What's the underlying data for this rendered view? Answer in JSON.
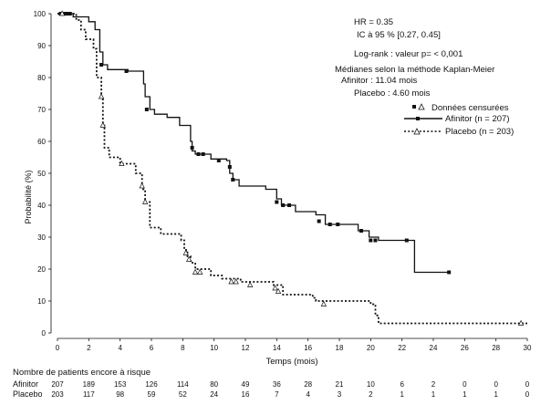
{
  "chart_data": {
    "type": "line",
    "ylabel": "Probabilité (%)",
    "xlabel": "Temps (mois)",
    "xlim": [
      0,
      30
    ],
    "ylim": [
      0,
      100
    ],
    "xticks": [
      "0",
      "2",
      "4",
      "6",
      "8",
      "10",
      "12",
      "14",
      "16",
      "18",
      "20",
      "22",
      "24",
      "26",
      "28",
      "30"
    ],
    "yticks": [
      "0",
      "10",
      "20",
      "30",
      "40",
      "50",
      "60",
      "70",
      "80",
      "90",
      "100"
    ],
    "annotations": {
      "hr": "HR = 0.35",
      "ic": "IC à 95 % [0.27, 0.45]",
      "logrank": "Log-rank : valeur p= < 0,001",
      "medianes": "Médianes selon la méthode Kaplan-Meier",
      "afinitor_median": "Afinitor : 11.04 mois",
      "placebo_median": "Placebo : 4.60 mois"
    },
    "legend": {
      "censored": "Données censurées",
      "afinitor": "Afinitor (n = 207)",
      "placebo": "Placebo (n = 203)",
      "position": "right"
    },
    "series": [
      {
        "name": "Afinitor (n = 207)",
        "style": "solid",
        "points": [
          [
            0,
            100
          ],
          [
            1,
            99
          ],
          [
            2,
            97.5
          ],
          [
            2.4,
            95
          ],
          [
            2.7,
            88
          ],
          [
            2.9,
            84
          ],
          [
            3.2,
            82.5
          ],
          [
            4.5,
            82
          ],
          [
            5.5,
            78
          ],
          [
            5.6,
            74
          ],
          [
            5.9,
            70
          ],
          [
            6.2,
            68.5
          ],
          [
            7,
            67.5
          ],
          [
            7.8,
            65
          ],
          [
            8.5,
            60
          ],
          [
            8.6,
            57
          ],
          [
            8.8,
            56
          ],
          [
            9.8,
            54.5
          ],
          [
            10.8,
            54
          ],
          [
            11,
            50
          ],
          [
            11.2,
            48
          ],
          [
            11.6,
            46
          ],
          [
            13.3,
            45
          ],
          [
            14,
            42
          ],
          [
            14.3,
            40
          ],
          [
            15.2,
            38
          ],
          [
            16.5,
            37
          ],
          [
            17.1,
            34
          ],
          [
            19.2,
            32
          ],
          [
            19.9,
            30
          ],
          [
            20.5,
            29
          ],
          [
            22.8,
            19
          ],
          [
            25,
            19
          ]
        ]
      },
      {
        "name": "Placebo (n = 203)",
        "style": "dotted",
        "points": [
          [
            0,
            100
          ],
          [
            1.2,
            98
          ],
          [
            1.5,
            95
          ],
          [
            1.8,
            92
          ],
          [
            2.3,
            89
          ],
          [
            2.5,
            80
          ],
          [
            2.8,
            74
          ],
          [
            2.9,
            65
          ],
          [
            3,
            58
          ],
          [
            3.3,
            55
          ],
          [
            4,
            53
          ],
          [
            5,
            50
          ],
          [
            5.4,
            45
          ],
          [
            5.6,
            41
          ],
          [
            5.9,
            33
          ],
          [
            6.6,
            31
          ],
          [
            7.9,
            29
          ],
          [
            8.1,
            26
          ],
          [
            8.3,
            24
          ],
          [
            8.5,
            22
          ],
          [
            8.8,
            20
          ],
          [
            9.8,
            18
          ],
          [
            10.5,
            17
          ],
          [
            11.7,
            16
          ],
          [
            13.8,
            15
          ],
          [
            14.4,
            12
          ],
          [
            16.3,
            11
          ],
          [
            16.5,
            10
          ],
          [
            20,
            9
          ],
          [
            20.3,
            5.5
          ],
          [
            20.5,
            3
          ],
          [
            30,
            3
          ]
        ]
      }
    ],
    "censored": {
      "afinitor": [
        [
          0.2,
          100
        ],
        [
          0.4,
          100
        ],
        [
          0.6,
          100
        ],
        [
          0.8,
          100
        ],
        [
          2.8,
          84
        ],
        [
          4.4,
          82
        ],
        [
          5.7,
          70
        ],
        [
          8.6,
          58
        ],
        [
          9,
          56
        ],
        [
          9.3,
          56
        ],
        [
          10.3,
          54
        ],
        [
          11,
          52
        ],
        [
          11.2,
          48
        ],
        [
          14,
          41
        ],
        [
          14.4,
          40
        ],
        [
          14.8,
          40
        ],
        [
          16.7,
          35
        ],
        [
          17.4,
          34
        ],
        [
          17.9,
          34
        ],
        [
          19.4,
          32
        ],
        [
          20,
          29
        ],
        [
          20.3,
          29
        ],
        [
          22.3,
          29
        ],
        [
          25,
          19
        ]
      ],
      "placebo": [
        [
          0.3,
          100
        ],
        [
          2.8,
          74
        ],
        [
          2.9,
          65
        ],
        [
          4.1,
          53
        ],
        [
          5.4,
          46
        ],
        [
          5.6,
          41
        ],
        [
          8.2,
          25
        ],
        [
          8.4,
          23
        ],
        [
          8.8,
          19
        ],
        [
          9.1,
          19
        ],
        [
          11.1,
          16
        ],
        [
          11.4,
          16
        ],
        [
          12.3,
          15
        ],
        [
          13.9,
          14
        ],
        [
          14.1,
          13
        ],
        [
          17,
          9
        ],
        [
          29.6,
          3
        ]
      ]
    },
    "at_risk": {
      "title": "Nombre de patients encore à risque",
      "rows": [
        {
          "label": "Afinitor",
          "values": [
            "207",
            "189",
            "153",
            "126",
            "114",
            "80",
            "49",
            "36",
            "28",
            "21",
            "10",
            "6",
            "2",
            "0",
            "0",
            "0"
          ]
        },
        {
          "label": "Placebo",
          "values": [
            "203",
            "117",
            "98",
            "59",
            "52",
            "24",
            "16",
            "7",
            "4",
            "3",
            "2",
            "1",
            "1",
            "1",
            "1",
            "0"
          ]
        }
      ]
    }
  }
}
